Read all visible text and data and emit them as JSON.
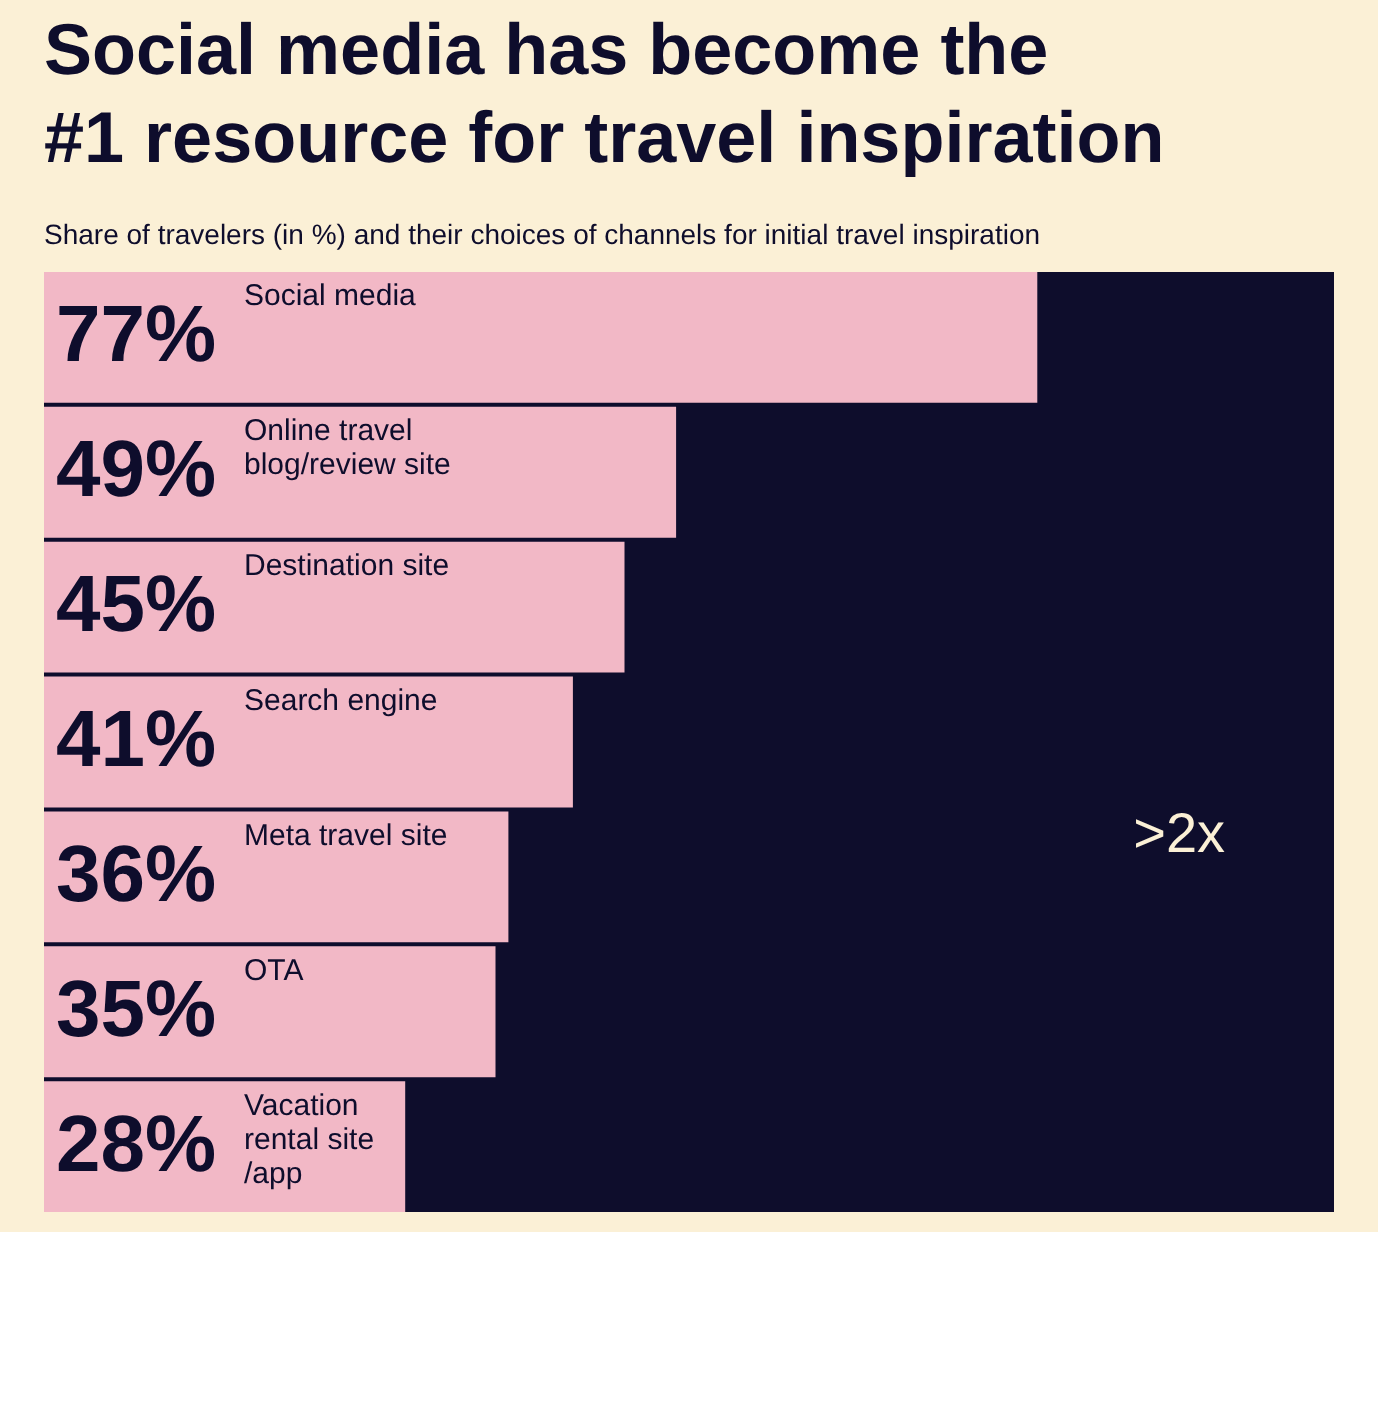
{
  "chart_data": {
    "type": "bar",
    "orientation": "horizontal",
    "title": "Social media has become the\n#1 resource for travel inspiration",
    "subtitle": "Share of travelers (in %) and their choices of channels for initial travel inspiration",
    "categories": [
      "Social media",
      "Online travel\nblog/review site",
      "Destination site",
      "Search engine",
      "Meta travel site",
      "OTA",
      "Vacation\nrental site\n/app"
    ],
    "values": [
      77,
      49,
      45,
      41,
      36,
      35,
      28
    ],
    "color": "#f2b8c6",
    "value_labels": [
      "77%",
      "49%",
      "45%",
      "41%",
      "36%",
      "35%",
      "28%"
    ],
    "xlim": [
      0,
      100
    ],
    "bands": [
      {
        "axis": "x",
        "from": 0,
        "to": 100,
        "color": "#0e0d2c"
      }
    ],
    "annotations": [
      ">2x"
    ]
  }
}
